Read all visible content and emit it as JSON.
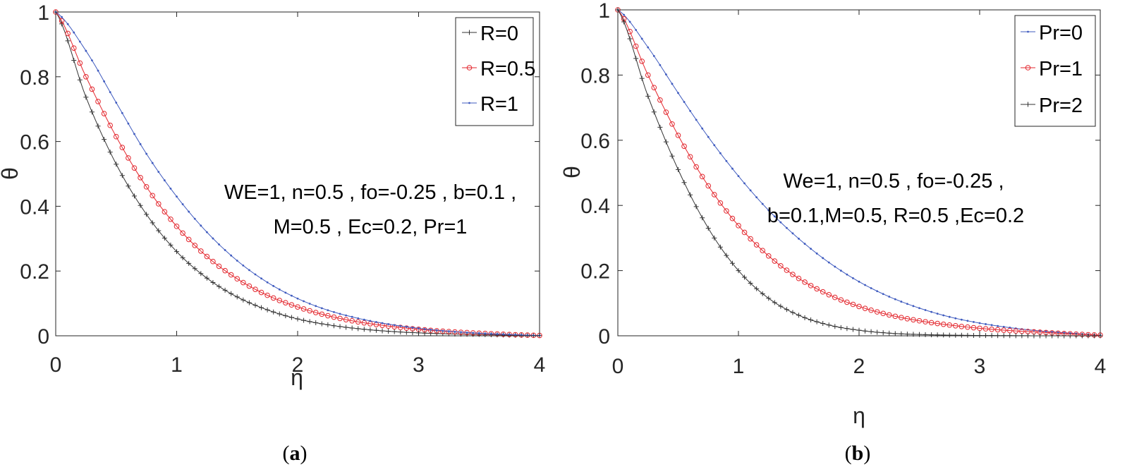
{
  "chart_data": [
    {
      "type": "line",
      "panel": "a",
      "caption_open": "(",
      "caption_letter": "a",
      "caption_close": ")",
      "xlabel": "η",
      "ylabel": "θ",
      "xlim": [
        0,
        4
      ],
      "ylim": [
        0,
        1
      ],
      "xticks": [
        "0",
        "1",
        "2",
        "3",
        "4"
      ],
      "yticks": [
        "0",
        "0.2",
        "0.4",
        "0.6",
        "0.8",
        "1"
      ],
      "grid": false,
      "legend_position": "top-right",
      "annotation": [
        "WE=1, n=0.5 , fo=-0.25 , b=0.1 ,",
        "M=0.5 , Ec=0.2, Pr=1"
      ],
      "x": [
        0,
        0.25,
        0.5,
        0.75,
        1,
        1.25,
        1.5,
        1.75,
        2,
        2.25,
        2.5,
        2.75,
        3,
        3.25,
        3.5,
        3.75,
        4
      ],
      "series": [
        {
          "name": "R=0",
          "color": "#333333",
          "marker": "plus",
          "values": [
            1,
            0.737,
            0.53,
            0.375,
            0.26,
            0.178,
            0.12,
            0.08,
            0.052,
            0.034,
            0.022,
            0.014,
            0.009,
            0.006,
            0.004,
            0.002,
            0.001
          ]
        },
        {
          "name": "R=0.5",
          "color": "#e3262d",
          "marker": "circle",
          "values": [
            1,
            0.8,
            0.615,
            0.46,
            0.338,
            0.245,
            0.176,
            0.125,
            0.089,
            0.062,
            0.043,
            0.03,
            0.02,
            0.013,
            0.008,
            0.004,
            0.001
          ]
        },
        {
          "name": "R=1",
          "color": "#3f5bbf",
          "marker": "dot",
          "values": [
            1,
            0.88,
            0.72,
            0.562,
            0.43,
            0.32,
            0.232,
            0.165,
            0.115,
            0.079,
            0.054,
            0.036,
            0.023,
            0.014,
            0.008,
            0.004,
            0.001
          ]
        }
      ]
    },
    {
      "type": "line",
      "panel": "b",
      "caption_open": "(",
      "caption_letter": "b",
      "caption_close": ")",
      "xlabel": "η",
      "ylabel": "θ",
      "xlim": [
        0,
        4
      ],
      "ylim": [
        0,
        1
      ],
      "xticks": [
        "0",
        "1",
        "2",
        "3",
        "4"
      ],
      "yticks": [
        "0",
        "0.2",
        "0.4",
        "0.6",
        "0.8",
        "1"
      ],
      "grid": false,
      "legend_position": "top-right",
      "annotation": [
        "We=1, n=0.5 , fo=-0.25 ,",
        "b=0.1,M=0.5, R=0.5 ,Ec=0.2"
      ],
      "x": [
        0,
        0.25,
        0.5,
        0.75,
        1,
        1.25,
        1.5,
        1.75,
        2,
        2.25,
        2.5,
        2.75,
        3,
        3.25,
        3.5,
        3.75,
        4
      ],
      "series": [
        {
          "name": "Pr=0",
          "color": "#3f5bbf",
          "marker": "dot",
          "values": [
            1,
            0.885,
            0.745,
            0.61,
            0.49,
            0.385,
            0.298,
            0.225,
            0.166,
            0.12,
            0.085,
            0.058,
            0.039,
            0.025,
            0.015,
            0.008,
            0.002
          ]
        },
        {
          "name": "Pr=1",
          "color": "#e3262d",
          "marker": "circle",
          "values": [
            1,
            0.8,
            0.615,
            0.46,
            0.338,
            0.245,
            0.176,
            0.126,
            0.09,
            0.064,
            0.046,
            0.033,
            0.023,
            0.016,
            0.011,
            0.006,
            0.002
          ]
        },
        {
          "name": "Pr=2",
          "color": "#333333",
          "marker": "plus",
          "values": [
            1,
            0.735,
            0.51,
            0.33,
            0.2,
            0.115,
            0.063,
            0.033,
            0.017,
            0.008,
            0.004,
            0.002,
            0.001,
            0.0005,
            0,
            0,
            0
          ]
        }
      ]
    }
  ]
}
